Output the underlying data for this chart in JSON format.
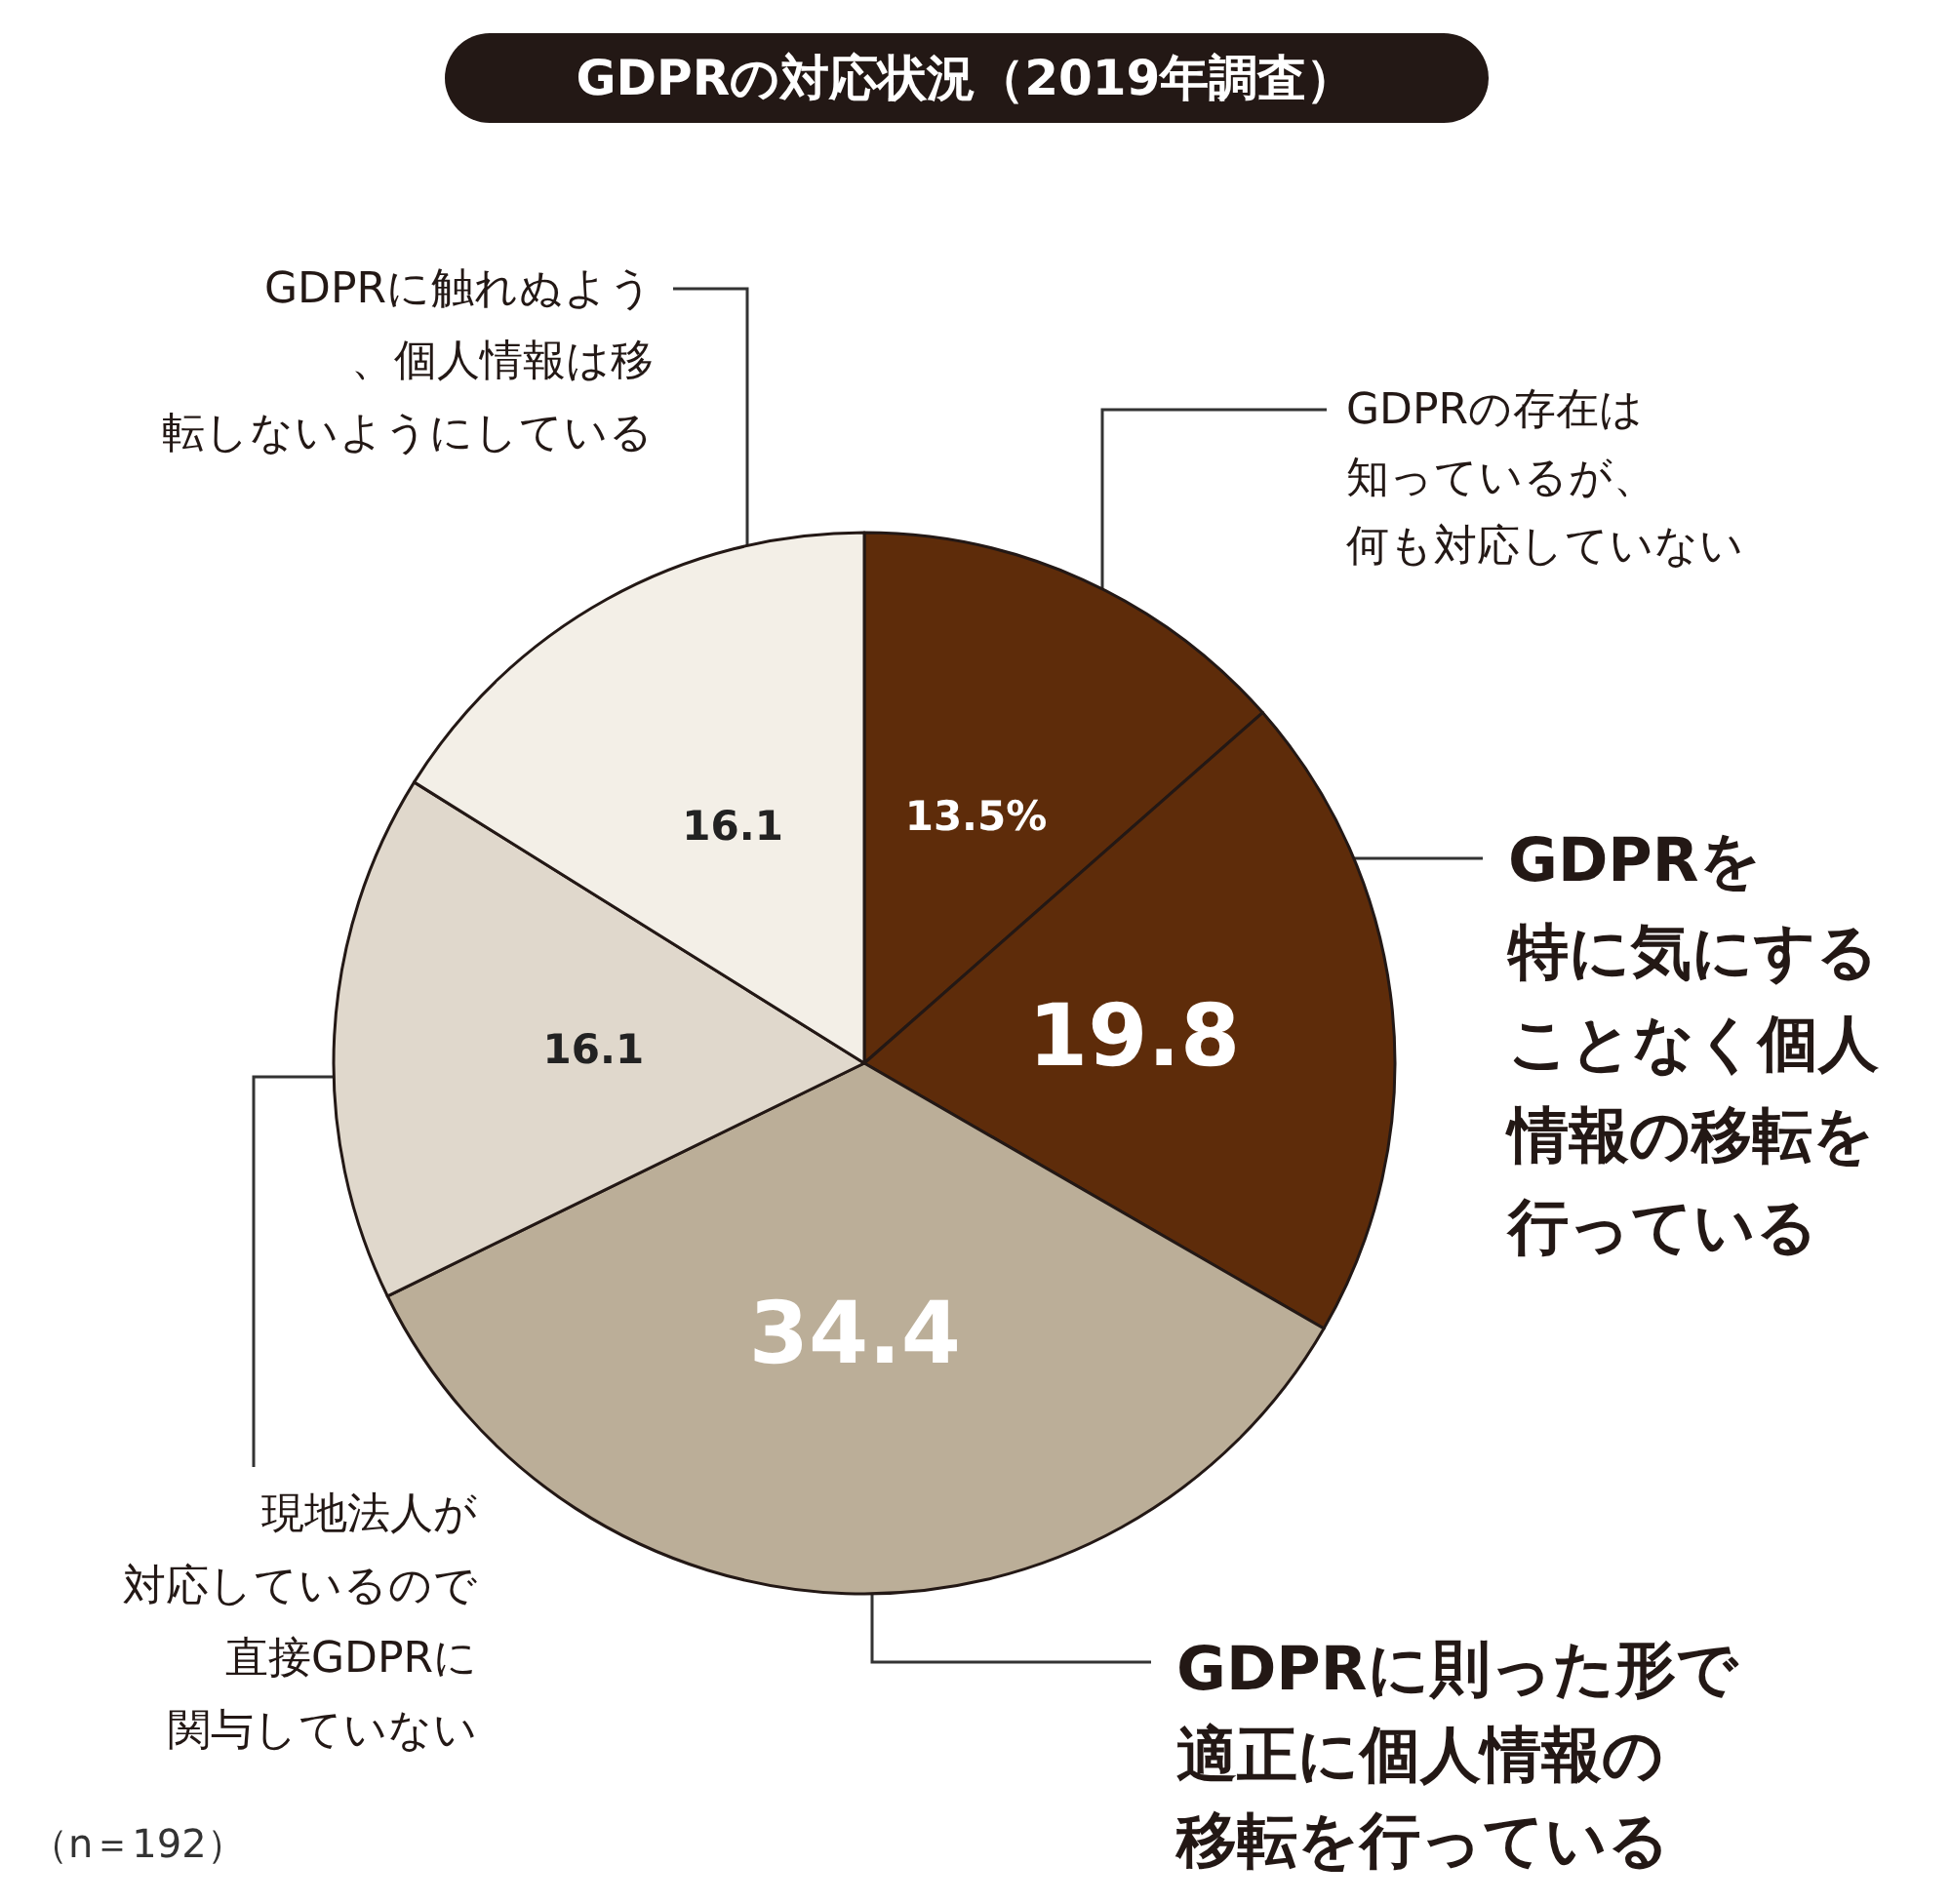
{
  "chart_data": {
    "type": "pie",
    "title": "GDPRの対応状況（2019年調査）",
    "categories": [
      "GDPRの存在は知っているが、何も対応していない",
      "GDPRを特に気にすることなく個人情報の移転を行っている",
      "GDPRに則った形で適正に個人情報の移転を行っている",
      "現地法人が対応しているので直接GDPRに関与していない",
      "GDPRに触れぬよう、個人情報は移転しないようにしている"
    ],
    "values": [
      13.5,
      19.8,
      34.4,
      16.1,
      16.1
    ],
    "colors": [
      "#5e2c0a",
      "#5e2c0a",
      "#bbae98",
      "#e0d8cc",
      "#f3efe7"
    ],
    "value_labels": [
      "13.5%",
      "19.8",
      "34.4",
      "16.1",
      "16.1"
    ],
    "annotations": [
      "（n＝192）"
    ],
    "legend": false
  }
}
